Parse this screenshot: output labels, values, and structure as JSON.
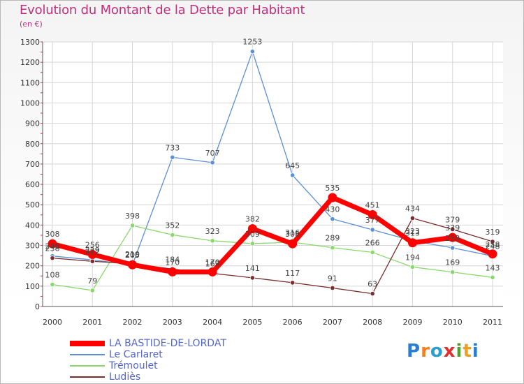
{
  "chart_data": {
    "type": "line",
    "title": "Evolution du Montant de la Dette par Habitant",
    "subtitle": "(en €)",
    "xlabel": "",
    "ylabel": "",
    "ylim": [
      0,
      1300
    ],
    "yticks": [
      0,
      100,
      200,
      300,
      400,
      500,
      600,
      700,
      800,
      900,
      1000,
      1100,
      1200,
      1300
    ],
    "categories": [
      "2000",
      "2001",
      "2002",
      "2003",
      "2004",
      "2005",
      "2006",
      "2007",
      "2008",
      "2009",
      "2010",
      "2011"
    ],
    "series": [
      {
        "name": "LA BASTIDE-DE-LORDAT",
        "color": "#ff0000",
        "values": [
          308,
          256,
          205,
          170,
          170,
          382,
          308,
          535,
          451,
          313,
          339,
          258
        ]
      },
      {
        "name": "Le Carlaret",
        "color": "#5b8fd6",
        "values": [
          248,
          229,
          205,
          733,
          707,
          1253,
          645,
          430,
          377,
          323,
          288,
          248
        ]
      },
      {
        "name": "Trémoulet",
        "color": "#88d86a",
        "values": [
          108,
          79,
          398,
          352,
          323,
          309,
          316,
          289,
          266,
          194,
          169,
          143
        ]
      },
      {
        "name": "Ludiès",
        "color": "#7a2b2b",
        "values": [
          238,
          222,
          210,
          184,
          163,
          141,
          117,
          91,
          63,
          434,
          379,
          319
        ]
      }
    ],
    "legend_position": "bottom-left",
    "grid": true
  },
  "logo": {
    "text": "Proxiti"
  }
}
